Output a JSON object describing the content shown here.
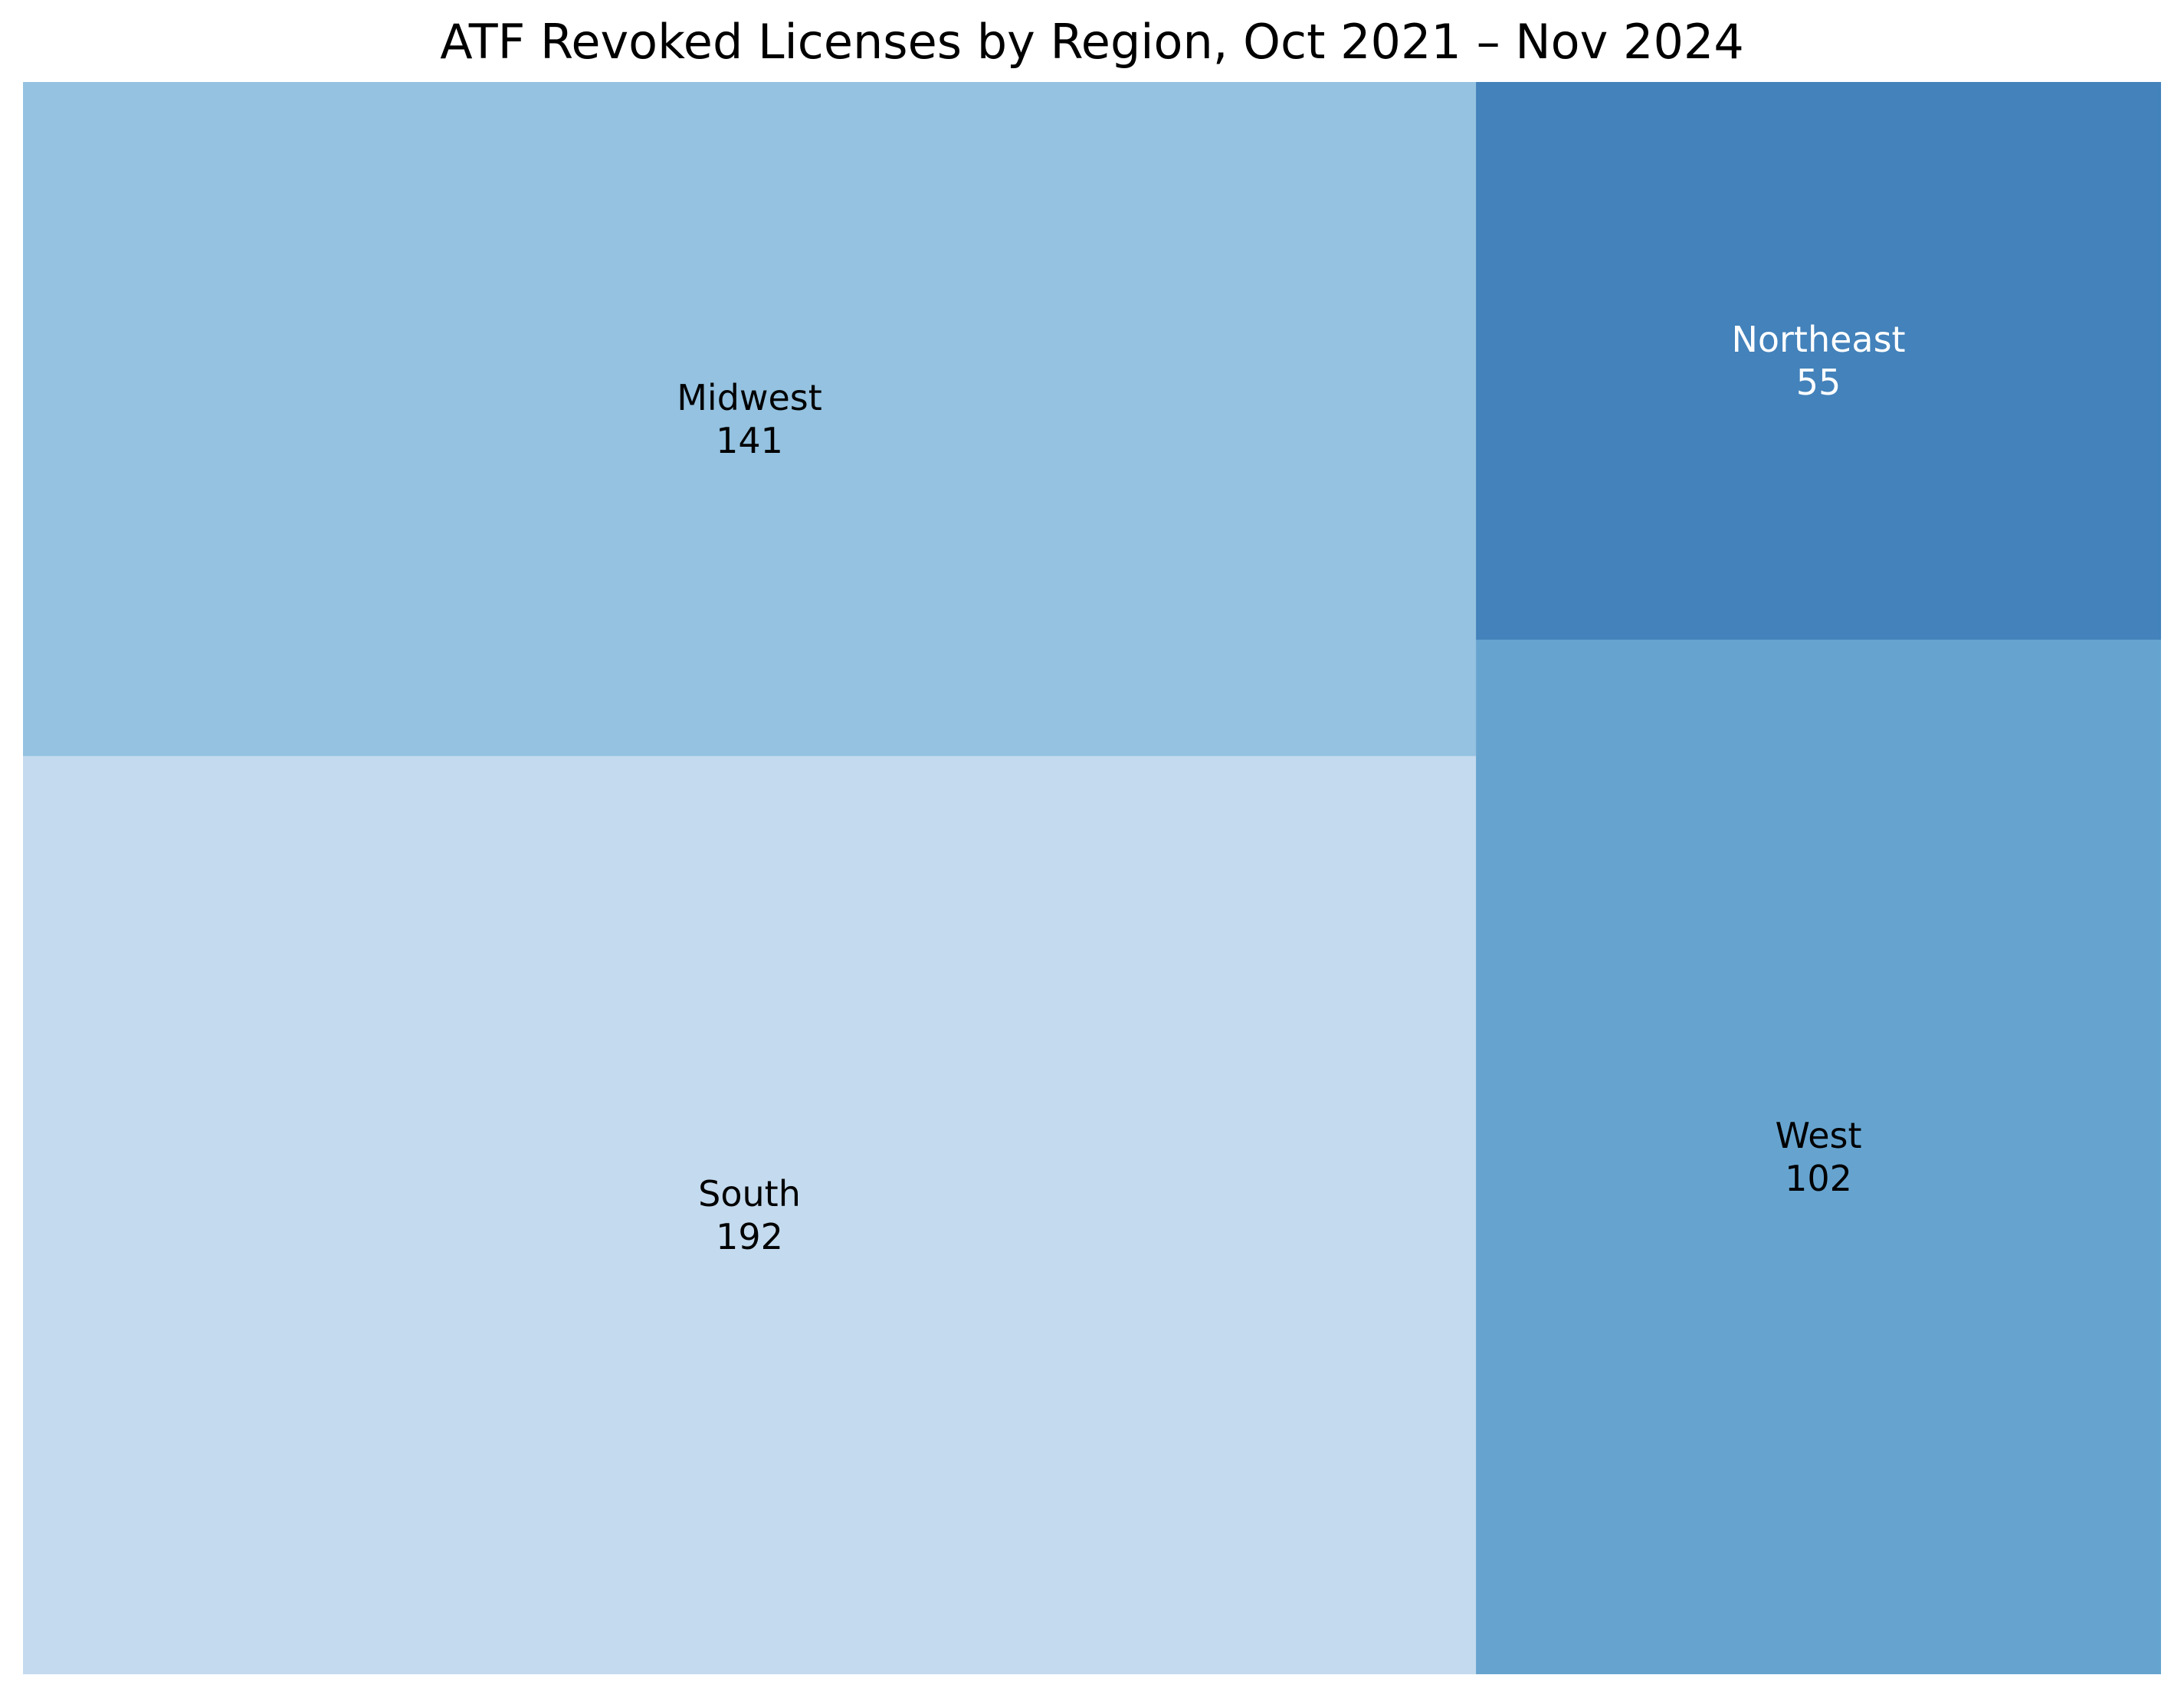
{
  "chart_data": {
    "type": "treemap",
    "title": "ATF Revoked Licenses by Region, Oct 2021 – Nov 2024",
    "items": [
      {
        "label": "South",
        "value": 192,
        "color": "#c4daee",
        "text_color": "#000000"
      },
      {
        "label": "Midwest",
        "value": 141,
        "color": "#94c2e0",
        "text_color": "#000000"
      },
      {
        "label": "West",
        "value": 102,
        "color": "#66a4cf",
        "text_color": "#000000"
      },
      {
        "label": "Northeast",
        "value": 55,
        "color": "#4382bb",
        "text_color": "#ffffff"
      }
    ]
  }
}
